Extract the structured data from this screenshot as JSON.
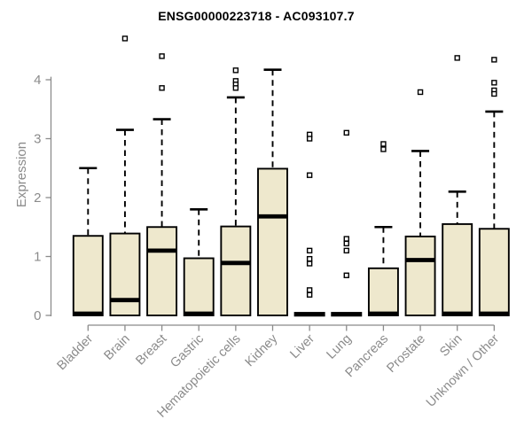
{
  "chart_data": {
    "type": "boxplot",
    "title": "ENSG00000223718 - AC093107.7",
    "ylabel": "Expression",
    "xlabel": "",
    "ylim": [
      0,
      4.75
    ],
    "yticks": [
      0,
      1,
      2,
      3,
      4
    ],
    "grid": false,
    "legend": "none",
    "categories": [
      "Bladder",
      "Brain",
      "Breast",
      "Gastric",
      "Hematopoietic cells",
      "Kidney",
      "Liver",
      "Lung",
      "Pancreas",
      "Prostate",
      "Skin",
      "Unknown / Other"
    ],
    "boxes": [
      {
        "label": "Bladder",
        "q1": 0,
        "median": 0.03,
        "q3": 1.35,
        "whisker_low": 0,
        "whisker_high": 2.5,
        "outliers": []
      },
      {
        "label": "Brain",
        "q1": 0,
        "median": 0.26,
        "q3": 1.39,
        "whisker_low": 0,
        "whisker_high": 3.15,
        "outliers": [
          4.7
        ]
      },
      {
        "label": "Breast",
        "q1": 0,
        "median": 1.1,
        "q3": 1.5,
        "whisker_low": 0,
        "whisker_high": 3.33,
        "outliers": [
          4.4,
          3.86
        ]
      },
      {
        "label": "Gastric",
        "q1": 0,
        "median": 0.03,
        "q3": 0.97,
        "whisker_low": 0,
        "whisker_high": 1.8,
        "outliers": []
      },
      {
        "label": "Hematopoietic cells",
        "q1": 0,
        "median": 0.89,
        "q3": 1.51,
        "whisker_low": 0,
        "whisker_high": 3.7,
        "outliers": [
          4.16,
          3.98,
          3.92,
          3.86
        ]
      },
      {
        "label": "Kidney",
        "q1": 0,
        "median": 1.68,
        "q3": 2.49,
        "whisker_low": 0,
        "whisker_high": 4.17,
        "outliers": []
      },
      {
        "label": "Liver",
        "q1": 0,
        "median": 0.02,
        "q3": 0.03,
        "whisker_low": 0,
        "whisker_high": 0.03,
        "outliers": [
          3.07,
          3.0,
          2.38,
          1.1,
          0.96,
          0.88,
          0.43,
          0.35
        ]
      },
      {
        "label": "Lung",
        "q1": 0,
        "median": 0.02,
        "q3": 0.03,
        "whisker_low": 0,
        "whisker_high": 0.03,
        "outliers": [
          3.1,
          1.3,
          1.22,
          1.1,
          0.68
        ]
      },
      {
        "label": "Pancreas",
        "q1": 0,
        "median": 0.03,
        "q3": 0.8,
        "whisker_low": 0,
        "whisker_high": 1.5,
        "outliers": [
          2.91,
          2.82
        ]
      },
      {
        "label": "Prostate",
        "q1": 0,
        "median": 0.94,
        "q3": 1.34,
        "whisker_low": 0,
        "whisker_high": 2.79,
        "outliers": [
          3.79
        ]
      },
      {
        "label": "Skin",
        "q1": 0,
        "median": 0.03,
        "q3": 1.55,
        "whisker_low": 0,
        "whisker_high": 2.1,
        "outliers": [
          4.37
        ]
      },
      {
        "label": "Unknown / Other",
        "q1": 0,
        "median": 0.03,
        "q3": 1.47,
        "whisker_low": 0,
        "whisker_high": 3.46,
        "outliers": [
          4.34,
          3.95,
          3.82,
          3.76
        ]
      }
    ]
  },
  "colors": {
    "background": "#ffffff",
    "box_fill": "#EEE8CD",
    "box_border": "#000000",
    "median": "#000000",
    "whisker": "#000000",
    "outlier_fill": "#ffffff",
    "outlier_border": "#000000",
    "axis": "#8B8B8B",
    "axis_text": "#8B8B8B",
    "title_text": "#000000"
  }
}
